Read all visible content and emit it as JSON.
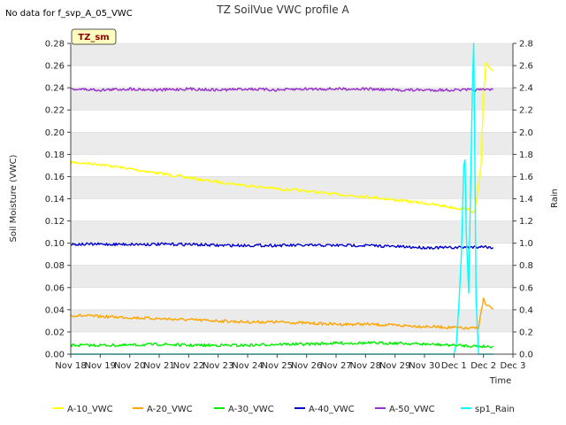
{
  "no_data_text": "No data for f_svp_A_05_VWC",
  "badge_text": "TZ_sm",
  "colors": {
    "band": "#ebebeb",
    "grid": "#d8d8d8",
    "axis": "#444444",
    "badge_bg": "#ffffc0",
    "badge_border": "#555555"
  },
  "chart_data": {
    "type": "line",
    "title": "TZ SoilVue VWC profile A",
    "xlabel": "Time",
    "ylabel": "Soil Moisture (VWC)",
    "y2label": "Rain",
    "xlim": [
      "Nov 18",
      "Dec 3"
    ],
    "ylim": [
      0.0,
      0.28
    ],
    "y2lim": [
      0.0,
      2.8
    ],
    "x_tick_labels": [
      "Nov 18",
      "Nov 19",
      "Nov 20",
      "Nov 21",
      "Nov 22",
      "Nov 23",
      "Nov 24",
      "Nov 25",
      "Nov 26",
      "Nov 27",
      "Nov 28",
      "Nov 29",
      "Nov 30",
      "Dec 1",
      "Dec 2",
      "Dec 3"
    ],
    "y_tick_labels": [
      "0.00",
      "0.02",
      "0.04",
      "0.06",
      "0.08",
      "0.10",
      "0.12",
      "0.14",
      "0.16",
      "0.18",
      "0.20",
      "0.22",
      "0.24",
      "0.26",
      "0.28"
    ],
    "y2_tick_labels": [
      "0.0",
      "0.2",
      "0.4",
      "0.6",
      "0.8",
      "1.0",
      "1.2",
      "1.4",
      "1.6",
      "1.8",
      "2.0",
      "2.2",
      "2.4",
      "2.6",
      "2.8"
    ],
    "grid": true,
    "legend_position": "bottom",
    "series": [
      {
        "name": "A-10_VWC",
        "color": "#ffff00",
        "axis": "left",
        "x": [
          "Nov 18",
          "Nov 19",
          "Nov 20",
          "Nov 21",
          "Nov 22",
          "Nov 23",
          "Nov 24",
          "Nov 25",
          "Nov 26",
          "Nov 27",
          "Nov 28",
          "Nov 29",
          "Nov 30",
          "Dec 1",
          "Dec 1 12:00",
          "Dec 1 17:00",
          "Dec 1 22:00",
          "Dec 2",
          "Dec 2 02:00",
          "Dec 2 08:00"
        ],
        "y": [
          0.173,
          0.171,
          0.167,
          0.163,
          0.159,
          0.155,
          0.152,
          0.149,
          0.147,
          0.144,
          0.142,
          0.139,
          0.136,
          0.132,
          0.13,
          0.128,
          0.17,
          0.23,
          0.262,
          0.255
        ]
      },
      {
        "name": "A-20_VWC",
        "color": "#ffa500",
        "axis": "left",
        "x": [
          "Nov 18",
          "Nov 19",
          "Nov 20",
          "Nov 21",
          "Nov 22",
          "Nov 23",
          "Nov 24",
          "Nov 25",
          "Nov 26",
          "Nov 27",
          "Nov 28",
          "Nov 29",
          "Nov 30",
          "Dec 1",
          "Dec 1 12:00",
          "Dec 1 20:00",
          "Dec 2",
          "Dec 2 02:00",
          "Dec 2 08:00"
        ],
        "y": [
          0.035,
          0.034,
          0.033,
          0.032,
          0.031,
          0.03,
          0.029,
          0.029,
          0.028,
          0.027,
          0.027,
          0.026,
          0.025,
          0.024,
          0.023,
          0.024,
          0.05,
          0.044,
          0.041
        ]
      },
      {
        "name": "A-30_VWC",
        "color": "#00ee00",
        "axis": "left",
        "x": [
          "Nov 18",
          "Nov 19",
          "Nov 20",
          "Nov 21",
          "Nov 22",
          "Nov 23",
          "Nov 24",
          "Nov 25",
          "Nov 26",
          "Nov 27",
          "Nov 28",
          "Nov 29",
          "Nov 30",
          "Dec 1",
          "Dec 2",
          "Dec 2 08:00"
        ],
        "y": [
          0.008,
          0.008,
          0.008,
          0.009,
          0.008,
          0.008,
          0.008,
          0.009,
          0.009,
          0.01,
          0.01,
          0.01,
          0.009,
          0.008,
          0.007,
          0.007
        ]
      },
      {
        "name": "A-40_VWC",
        "color": "#0000cc",
        "axis": "left",
        "x": [
          "Nov 18",
          "Nov 19",
          "Nov 20",
          "Nov 21",
          "Nov 22",
          "Nov 23",
          "Nov 24",
          "Nov 25",
          "Nov 26",
          "Nov 27",
          "Nov 28",
          "Nov 29",
          "Nov 30",
          "Dec 1",
          "Dec 2",
          "Dec 2 08:00"
        ],
        "y": [
          0.099,
          0.099,
          0.099,
          0.099,
          0.099,
          0.098,
          0.098,
          0.098,
          0.098,
          0.098,
          0.098,
          0.097,
          0.096,
          0.096,
          0.097,
          0.096
        ]
      },
      {
        "name": "A-50_VWC",
        "color": "#9932cc",
        "axis": "left",
        "x": [
          "Nov 18",
          "Nov 19",
          "Nov 20",
          "Nov 21",
          "Nov 22",
          "Nov 23",
          "Nov 24",
          "Nov 25",
          "Nov 26",
          "Nov 27",
          "Nov 28",
          "Nov 29",
          "Nov 30",
          "Dec 1",
          "Dec 2",
          "Dec 2 08:00"
        ],
        "y": [
          0.239,
          0.238,
          0.239,
          0.238,
          0.239,
          0.238,
          0.239,
          0.238,
          0.239,
          0.239,
          0.239,
          0.238,
          0.238,
          0.238,
          0.238,
          0.239
        ]
      },
      {
        "name": "sp1_Rain",
        "color": "#00ffff",
        "axis": "right",
        "x": [
          "Nov 18",
          "Dec 1",
          "Dec 1 02:00",
          "Dec 1 04:00",
          "Dec 1 06:00",
          "Dec 1 08:00",
          "Dec 1 09:00",
          "Dec 1 10:00",
          "Dec 1 12:00",
          "Dec 1 14:00",
          "Dec 1 15:00",
          "Dec 1 16:00",
          "Dec 1 17:00",
          "Dec 1 18:00",
          "Dec 1 20:00",
          "Dec 1 22:00",
          "Dec 2",
          "Dec 2 04:00",
          "Dec 2 08:00"
        ],
        "y": [
          0.0,
          0.0,
          0.1,
          0.45,
          0.9,
          1.7,
          1.75,
          1.1,
          0.55,
          1.8,
          2.4,
          2.8,
          1.8,
          0.5,
          0.0,
          0.0,
          0.0,
          0.0,
          0.0
        ]
      }
    ]
  }
}
